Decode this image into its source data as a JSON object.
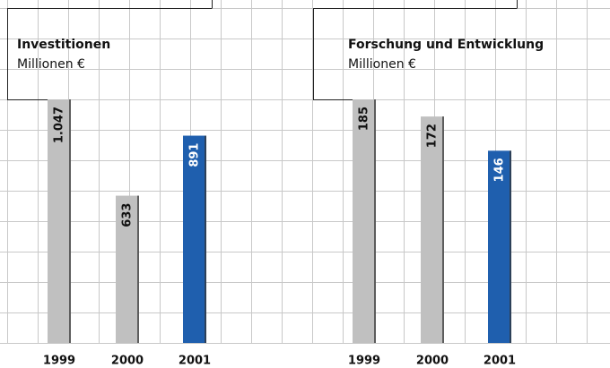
{
  "chart_data": [
    {
      "type": "bar",
      "title": "Investitionen",
      "subtitle": "Millionen €",
      "categories": [
        "1999",
        "2000",
        "2001"
      ],
      "values": [
        1047,
        633,
        891
      ],
      "value_labels": [
        "1.047",
        "633",
        "891"
      ],
      "colors": [
        "#c0c0c0",
        "#c0c0c0",
        "#1f5fae"
      ]
    },
    {
      "type": "bar",
      "title": "Forschung und Entwicklung",
      "subtitle": "Millionen €",
      "categories": [
        "1999",
        "2000",
        "2001"
      ],
      "values": [
        185,
        172,
        146
      ],
      "value_labels": [
        "185",
        "172",
        "146"
      ],
      "colors": [
        "#c0c0c0",
        "#c0c0c0",
        "#1f5fae"
      ]
    }
  ]
}
